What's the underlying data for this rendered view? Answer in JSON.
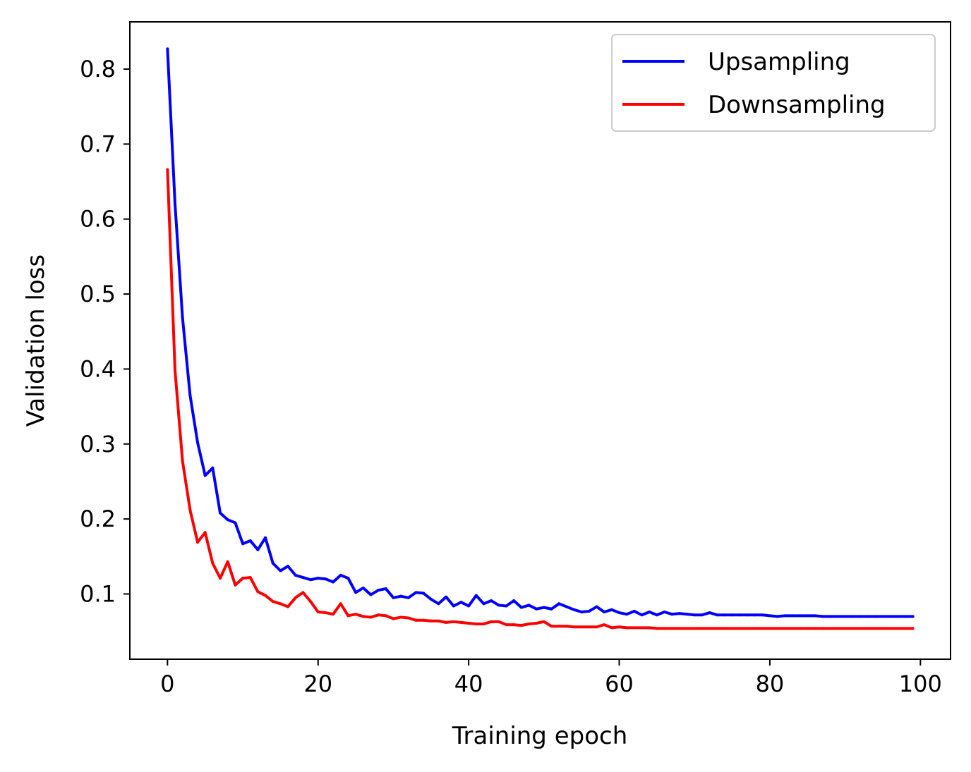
{
  "chart_data": {
    "type": "line",
    "xlabel": "Training epoch",
    "ylabel": "Validation loss",
    "xlim": [
      -5,
      104
    ],
    "ylim": [
      0.013,
      0.863
    ],
    "xticks": [
      0,
      20,
      40,
      60,
      80,
      100
    ],
    "yticks": [
      0.1,
      0.2,
      0.3,
      0.4,
      0.5,
      0.6,
      0.7,
      0.8
    ],
    "xtick_labels": [
      "0",
      "20",
      "40",
      "60",
      "80",
      "100"
    ],
    "ytick_labels": [
      "0.1",
      "0.2",
      "0.3",
      "0.4",
      "0.5",
      "0.6",
      "0.7",
      "0.8"
    ],
    "grid": false,
    "legend_position": "top-right",
    "x": [
      0,
      1,
      2,
      3,
      4,
      5,
      6,
      7,
      8,
      9,
      10,
      11,
      12,
      13,
      14,
      15,
      16,
      17,
      18,
      19,
      20,
      21,
      22,
      23,
      24,
      25,
      26,
      27,
      28,
      29,
      30,
      31,
      32,
      33,
      34,
      35,
      36,
      37,
      38,
      39,
      40,
      41,
      42,
      43,
      44,
      45,
      46,
      47,
      48,
      49,
      50,
      51,
      52,
      53,
      54,
      55,
      56,
      57,
      58,
      59,
      60,
      61,
      62,
      63,
      64,
      65,
      66,
      67,
      68,
      69,
      70,
      71,
      72,
      73,
      74,
      75,
      76,
      77,
      78,
      79,
      80,
      81,
      82,
      83,
      84,
      85,
      86,
      87,
      88,
      89,
      90,
      91,
      92,
      93,
      94,
      95,
      96,
      97,
      98,
      99
    ],
    "series": [
      {
        "name": "Upsampling",
        "color": "#0000ff",
        "values": [
          0.827,
          0.62,
          0.468,
          0.365,
          0.302,
          0.258,
          0.268,
          0.208,
          0.199,
          0.195,
          0.167,
          0.171,
          0.159,
          0.175,
          0.141,
          0.131,
          0.137,
          0.125,
          0.122,
          0.119,
          0.121,
          0.12,
          0.116,
          0.125,
          0.121,
          0.102,
          0.108,
          0.099,
          0.105,
          0.107,
          0.095,
          0.097,
          0.095,
          0.102,
          0.101,
          0.093,
          0.087,
          0.096,
          0.084,
          0.089,
          0.084,
          0.098,
          0.087,
          0.091,
          0.085,
          0.084,
          0.091,
          0.082,
          0.085,
          0.08,
          0.082,
          0.08,
          0.087,
          0.083,
          0.079,
          0.076,
          0.077,
          0.083,
          0.076,
          0.079,
          0.075,
          0.073,
          0.077,
          0.072,
          0.076,
          0.072,
          0.076,
          0.073,
          0.074,
          0.073,
          0.072,
          0.072,
          0.075,
          0.072,
          0.072,
          0.072,
          0.072,
          0.072,
          0.072,
          0.072,
          0.071,
          0.07,
          0.071,
          0.071,
          0.071,
          0.071,
          0.071,
          0.07,
          0.07,
          0.07,
          0.07,
          0.07,
          0.07,
          0.07,
          0.07,
          0.07,
          0.07,
          0.07,
          0.07,
          0.07
        ]
      },
      {
        "name": "Downsampling",
        "color": "#ff0000",
        "values": [
          0.666,
          0.398,
          0.277,
          0.212,
          0.169,
          0.182,
          0.141,
          0.121,
          0.143,
          0.112,
          0.121,
          0.122,
          0.103,
          0.098,
          0.09,
          0.087,
          0.083,
          0.095,
          0.102,
          0.09,
          0.076,
          0.075,
          0.073,
          0.087,
          0.071,
          0.073,
          0.07,
          0.069,
          0.072,
          0.071,
          0.067,
          0.069,
          0.068,
          0.065,
          0.065,
          0.064,
          0.064,
          0.062,
          0.063,
          0.062,
          0.061,
          0.06,
          0.06,
          0.063,
          0.063,
          0.059,
          0.059,
          0.058,
          0.06,
          0.061,
          0.063,
          0.057,
          0.057,
          0.057,
          0.056,
          0.056,
          0.056,
          0.056,
          0.059,
          0.055,
          0.056,
          0.055,
          0.055,
          0.055,
          0.055,
          0.054,
          0.054,
          0.054,
          0.054,
          0.054,
          0.054,
          0.054,
          0.054,
          0.054,
          0.054,
          0.054,
          0.054,
          0.054,
          0.054,
          0.054,
          0.054,
          0.054,
          0.054,
          0.054,
          0.054,
          0.054,
          0.054,
          0.054,
          0.054,
          0.054,
          0.054,
          0.054,
          0.054,
          0.054,
          0.054,
          0.054,
          0.054,
          0.054,
          0.054,
          0.054
        ]
      }
    ]
  }
}
